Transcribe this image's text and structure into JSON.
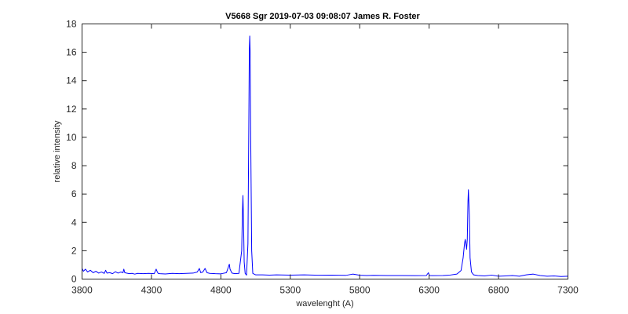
{
  "chart_data": {
    "type": "line",
    "title": "V5668 Sgr 2019-07-03   09:08:07  James R. Foster",
    "xlabel": "wavelenght (A)",
    "ylabel": "relative intensity",
    "xlim": [
      3800,
      7300
    ],
    "ylim": [
      0,
      18
    ],
    "xticks": [
      3800,
      4300,
      4800,
      5300,
      5800,
      6300,
      6800,
      7300
    ],
    "yticks": [
      0,
      2,
      4,
      6,
      8,
      10,
      12,
      14,
      16,
      18
    ],
    "grid": false,
    "legend": "none",
    "series": [
      {
        "color": "#0000ff",
        "x": [
          3800,
          3810,
          3825,
          3840,
          3860,
          3880,
          3900,
          3920,
          3940,
          3960,
          3970,
          3980,
          4000,
          4020,
          4040,
          4060,
          4080,
          4095,
          4101,
          4108,
          4120,
          4140,
          4160,
          4180,
          4200,
          4240,
          4280,
          4320,
          4334,
          4340,
          4348,
          4360,
          4400,
          4450,
          4500,
          4550,
          4600,
          4630,
          4645,
          4655,
          4670,
          4686,
          4700,
          4720,
          4760,
          4800,
          4840,
          4856,
          4861,
          4866,
          4880,
          4900,
          4930,
          4950,
          4955,
          4959,
          4963,
          4968,
          4975,
          4985,
          4995,
          5001,
          5005,
          5008,
          5011,
          5015,
          5022,
          5030,
          5050,
          5100,
          5150,
          5200,
          5300,
          5400,
          5500,
          5600,
          5700,
          5750,
          5800,
          5850,
          5900,
          6000,
          6100,
          6200,
          6280,
          6295,
          6300,
          6305,
          6320,
          6400,
          6450,
          6500,
          6530,
          6545,
          6555,
          6560,
          6565,
          6570,
          6575,
          6580,
          6583,
          6590,
          6595,
          6605,
          6620,
          6650,
          6700,
          6750,
          6800,
          6850,
          6900,
          6950,
          7000,
          7050,
          7100,
          7150,
          7200,
          7250,
          7300
        ],
        "y": [
          0.75,
          0.55,
          0.7,
          0.5,
          0.62,
          0.45,
          0.55,
          0.42,
          0.5,
          0.4,
          0.62,
          0.42,
          0.45,
          0.38,
          0.52,
          0.42,
          0.5,
          0.45,
          0.7,
          0.45,
          0.42,
          0.38,
          0.4,
          0.35,
          0.4,
          0.38,
          0.4,
          0.38,
          0.7,
          0.55,
          0.4,
          0.38,
          0.36,
          0.4,
          0.38,
          0.4,
          0.42,
          0.5,
          0.75,
          0.45,
          0.5,
          0.75,
          0.45,
          0.4,
          0.38,
          0.37,
          0.45,
          0.9,
          1.05,
          0.7,
          0.42,
          0.38,
          0.4,
          2.0,
          4.6,
          5.9,
          4.2,
          1.2,
          0.4,
          0.28,
          2.5,
          10.5,
          16.2,
          17.15,
          16.0,
          10.0,
          2.0,
          0.4,
          0.3,
          0.3,
          0.28,
          0.3,
          0.28,
          0.3,
          0.27,
          0.28,
          0.26,
          0.35,
          0.27,
          0.25,
          0.26,
          0.25,
          0.25,
          0.24,
          0.25,
          0.45,
          0.3,
          0.25,
          0.24,
          0.25,
          0.28,
          0.35,
          0.6,
          1.5,
          2.5,
          2.8,
          2.5,
          2.1,
          2.8,
          5.5,
          6.3,
          4.5,
          1.5,
          0.5,
          0.3,
          0.25,
          0.22,
          0.28,
          0.2,
          0.22,
          0.25,
          0.2,
          0.3,
          0.35,
          0.25,
          0.2,
          0.22,
          0.18,
          0.2
        ]
      }
    ]
  }
}
